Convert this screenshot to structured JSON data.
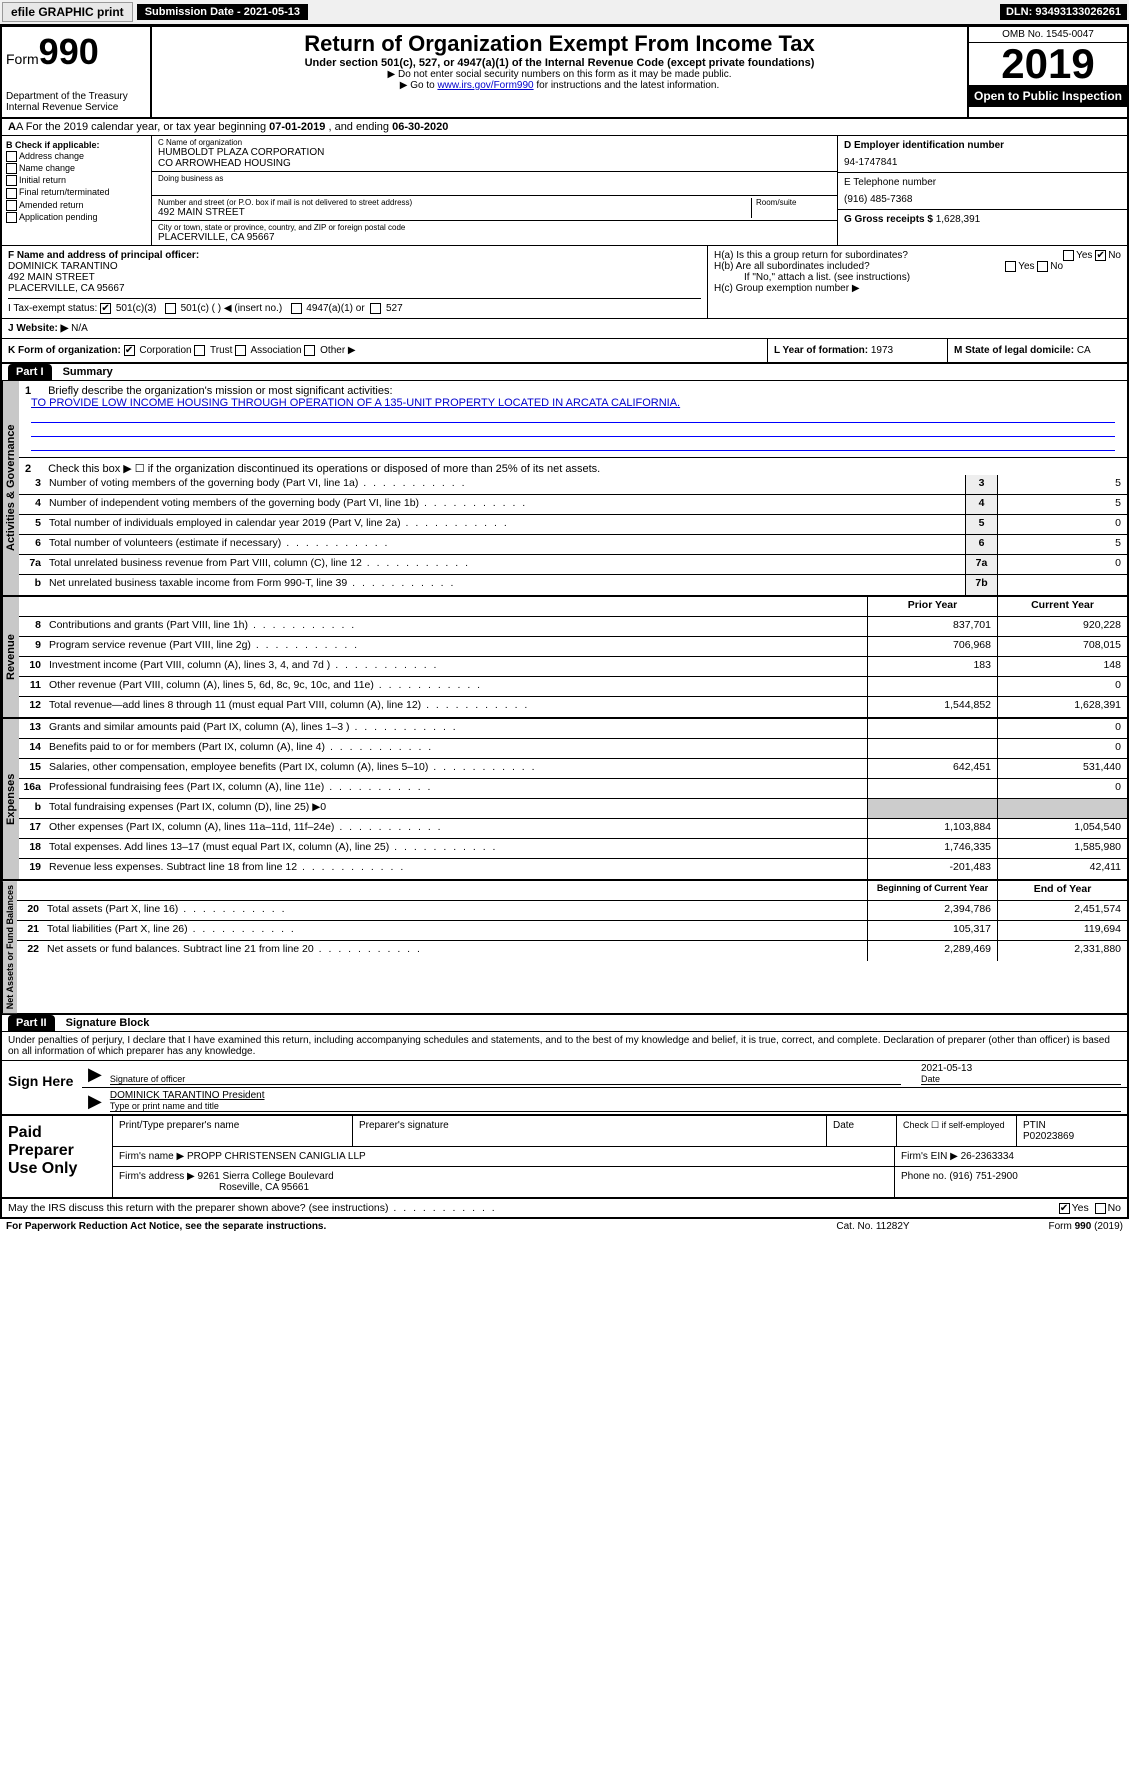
{
  "topbar": {
    "efile": "efile GRAPHIC print",
    "subdate_label": "Submission Date - 2021-05-13",
    "dln": "DLN: 93493133026261"
  },
  "header": {
    "form_word": "Form",
    "form_num": "990",
    "dept": "Department of the Treasury",
    "irs": "Internal Revenue Service",
    "title": "Return of Organization Exempt From Income Tax",
    "sub1": "Under section 501(c), 527, or 4947(a)(1) of the Internal Revenue Code (except private foundations)",
    "sub2": "▶ Do not enter social security numbers on this form as it may be made public.",
    "sub3_pre": "▶ Go to ",
    "sub3_link": "www.irs.gov/Form990",
    "sub3_post": " for instructions and the latest information.",
    "omb": "OMB No. 1545-0047",
    "year": "2019",
    "open": "Open to Public Inspection"
  },
  "row_a": {
    "text_pre": "A For the 2019 calendar year, or tax year beginning ",
    "begin": "07-01-2019",
    "mid": " , and ending ",
    "end": "06-30-2020"
  },
  "col_b": {
    "hdr": "B Check if applicable:",
    "opts": [
      "Address change",
      "Name change",
      "Initial return",
      "Final return/terminated",
      "Amended return",
      "Application pending"
    ]
  },
  "col_c": {
    "name_lbl": "C Name of organization",
    "name1": "HUMBOLDT PLAZA CORPORATION",
    "name2": "CO ARROWHEAD HOUSING",
    "dba_lbl": "Doing business as",
    "addr_lbl": "Number and street (or P.O. box if mail is not delivered to street address)",
    "room_lbl": "Room/suite",
    "addr": "492 MAIN STREET",
    "city_lbl": "City or town, state or province, country, and ZIP or foreign postal code",
    "city": "PLACERVILLE, CA  95667"
  },
  "col_d": {
    "d_lbl": "D Employer identification number",
    "ein": "94-1747841",
    "e_lbl": "E Telephone number",
    "phone": "(916) 485-7368",
    "g_lbl": "G Gross receipts $",
    "gross": "1,628,391"
  },
  "col_f": {
    "lbl": "F Name and address of principal officer:",
    "name": "DOMINICK TARANTINO",
    "addr1": "492 MAIN STREET",
    "addr2": "PLACERVILLE, CA  95667"
  },
  "col_h": {
    "ha": "H(a)  Is this a group return for subordinates?",
    "hb": "H(b)  Are all subordinates included?",
    "hb_note": "If \"No,\" attach a list. (see instructions)",
    "hc": "H(c)  Group exemption number ▶",
    "yes": "Yes",
    "no": "No"
  },
  "row_i": {
    "lbl": "I Tax-exempt status:",
    "o1": "501(c)(3)",
    "o2": "501(c) (   ) ◀ (insert no.)",
    "o3": "4947(a)(1) or",
    "o4": "527"
  },
  "row_j": {
    "lbl": "J Website: ▶",
    "val": "N/A"
  },
  "row_k": {
    "lbl": "K Form of organization:",
    "corp": "Corporation",
    "trust": "Trust",
    "assoc": "Association",
    "other": "Other ▶"
  },
  "row_l": {
    "lbl": "L Year of formation:",
    "val": "1973"
  },
  "row_m": {
    "lbl": "M State of legal domicile:",
    "val": "CA"
  },
  "part1": {
    "label": "Part I",
    "title": "Summary"
  },
  "summary": {
    "q1": "Briefly describe the organization's mission or most significant activities:",
    "mission": "TO PROVIDE LOW INCOME HOUSING THROUGH OPERATION OF A 135-UNIT PROPERTY LOCATED IN ARCATA CALIFORNIA.",
    "q2": "Check this box ▶ ☐ if the organization discontinued its operations or disposed of more than 25% of its net assets.",
    "lines_top": [
      {
        "n": "3",
        "t": "Number of voting members of the governing body (Part VI, line 1a)",
        "box": "3",
        "v": "5"
      },
      {
        "n": "4",
        "t": "Number of independent voting members of the governing body (Part VI, line 1b)",
        "box": "4",
        "v": "5"
      },
      {
        "n": "5",
        "t": "Total number of individuals employed in calendar year 2019 (Part V, line 2a)",
        "box": "5",
        "v": "0"
      },
      {
        "n": "6",
        "t": "Total number of volunteers (estimate if necessary)",
        "box": "6",
        "v": "5"
      },
      {
        "n": "7a",
        "t": "Total unrelated business revenue from Part VIII, column (C), line 12",
        "box": "7a",
        "v": "0"
      },
      {
        "n": "b",
        "t": "Net unrelated business taxable income from Form 990-T, line 39",
        "box": "7b",
        "v": ""
      }
    ],
    "col_prior": "Prior Year",
    "col_current": "Current Year",
    "revenue": [
      {
        "n": "8",
        "t": "Contributions and grants (Part VIII, line 1h)",
        "p": "837,701",
        "c": "920,228"
      },
      {
        "n": "9",
        "t": "Program service revenue (Part VIII, line 2g)",
        "p": "706,968",
        "c": "708,015"
      },
      {
        "n": "10",
        "t": "Investment income (Part VIII, column (A), lines 3, 4, and 7d )",
        "p": "183",
        "c": "148"
      },
      {
        "n": "11",
        "t": "Other revenue (Part VIII, column (A), lines 5, 6d, 8c, 9c, 10c, and 11e)",
        "p": "",
        "c": "0"
      },
      {
        "n": "12",
        "t": "Total revenue—add lines 8 through 11 (must equal Part VIII, column (A), line 12)",
        "p": "1,544,852",
        "c": "1,628,391"
      }
    ],
    "expenses": [
      {
        "n": "13",
        "t": "Grants and similar amounts paid (Part IX, column (A), lines 1–3 )",
        "p": "",
        "c": "0"
      },
      {
        "n": "14",
        "t": "Benefits paid to or for members (Part IX, column (A), line 4)",
        "p": "",
        "c": "0"
      },
      {
        "n": "15",
        "t": "Salaries, other compensation, employee benefits (Part IX, column (A), lines 5–10)",
        "p": "642,451",
        "c": "531,440"
      },
      {
        "n": "16a",
        "t": "Professional fundraising fees (Part IX, column (A), line 11e)",
        "p": "",
        "c": "0"
      },
      {
        "n": "b",
        "t": "Total fundraising expenses (Part IX, column (D), line 25) ▶0",
        "p": "—",
        "c": "—"
      },
      {
        "n": "17",
        "t": "Other expenses (Part IX, column (A), lines 11a–11d, 11f–24e)",
        "p": "1,103,884",
        "c": "1,054,540"
      },
      {
        "n": "18",
        "t": "Total expenses. Add lines 13–17 (must equal Part IX, column (A), line 25)",
        "p": "1,746,335",
        "c": "1,585,980"
      },
      {
        "n": "19",
        "t": "Revenue less expenses. Subtract line 18 from line 12",
        "p": "-201,483",
        "c": "42,411"
      }
    ],
    "col_begin": "Beginning of Current Year",
    "col_end": "End of Year",
    "netassets": [
      {
        "n": "20",
        "t": "Total assets (Part X, line 16)",
        "p": "2,394,786",
        "c": "2,451,574"
      },
      {
        "n": "21",
        "t": "Total liabilities (Part X, line 26)",
        "p": "105,317",
        "c": "119,694"
      },
      {
        "n": "22",
        "t": "Net assets or fund balances. Subtract line 21 from line 20",
        "p": "2,289,469",
        "c": "2,331,880"
      }
    ]
  },
  "vtabs": {
    "gov": "Activities & Governance",
    "rev": "Revenue",
    "exp": "Expenses",
    "net": "Net Assets or Fund Balances"
  },
  "part2": {
    "label": "Part II",
    "title": "Signature Block"
  },
  "perjury": "Under penalties of perjury, I declare that I have examined this return, including accompanying schedules and statements, and to the best of my knowledge and belief, it is true, correct, and complete. Declaration of preparer (other than officer) is based on all information of which preparer has any knowledge.",
  "sign": {
    "here": "Sign Here",
    "sig_lbl": "Signature of officer",
    "date_lbl": "Date",
    "date": "2021-05-13",
    "name": "DOMINICK TARANTINO President",
    "name_lbl": "Type or print name and title"
  },
  "paid": {
    "title": "Paid Preparer Use Only",
    "h1": "Print/Type preparer's name",
    "h2": "Preparer's signature",
    "h3": "Date",
    "h4_pre": "Check ☐ if self-employed",
    "h5": "PTIN",
    "ptin": "P02023869",
    "firm_lbl": "Firm's name      ▶",
    "firm": "PROPP CHRISTENSEN CANIGLIA LLP",
    "ein_lbl": "Firm's EIN ▶",
    "ein": "26-2363334",
    "addr_lbl": "Firm's address ▶",
    "addr1": "9261 Sierra College Boulevard",
    "addr2": "Roseville, CA  95661",
    "phone_lbl": "Phone no.",
    "phone": "(916) 751-2900"
  },
  "discuss": {
    "q": "May the IRS discuss this return with the preparer shown above? (see instructions)",
    "yes": "Yes",
    "no": "No"
  },
  "footer": {
    "pra": "For Paperwork Reduction Act Notice, see the separate instructions.",
    "cat": "Cat. No. 11282Y",
    "form": "Form 990 (2019)"
  },
  "colors": {
    "link": "#0000cc",
    "vtab_bg": "#c8c8c8",
    "black": "#000000"
  }
}
